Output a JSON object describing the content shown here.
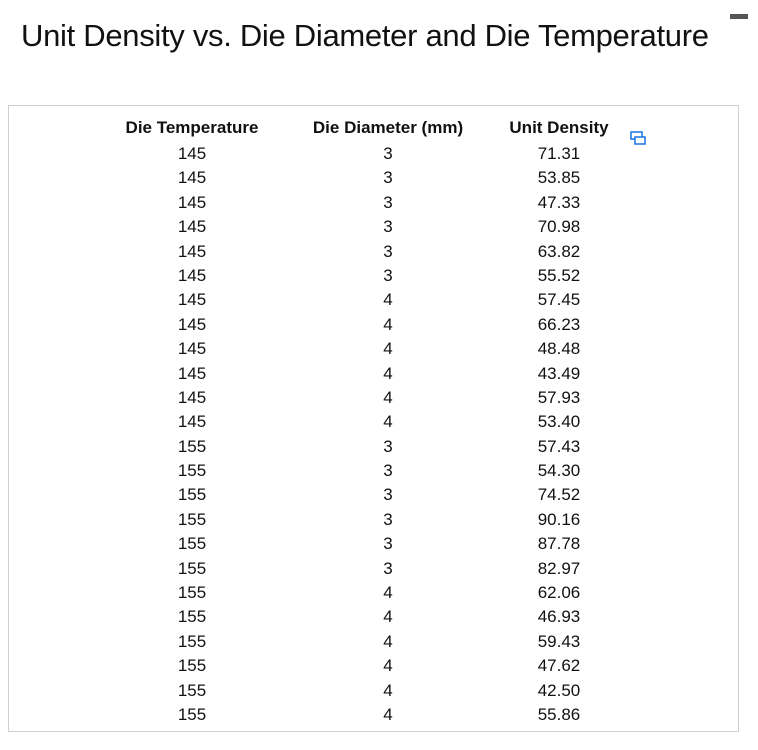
{
  "title": "Unit Density vs. Die Diameter and Die Temperature",
  "table": {
    "columns": [
      "Die Temperature",
      "Die Diameter (mm)",
      "Unit Density"
    ],
    "rows": [
      [
        "145",
        "3",
        "71.31"
      ],
      [
        "145",
        "3",
        "53.85"
      ],
      [
        "145",
        "3",
        "47.33"
      ],
      [
        "145",
        "3",
        "70.98"
      ],
      [
        "145",
        "3",
        "63.82"
      ],
      [
        "145",
        "3",
        "55.52"
      ],
      [
        "145",
        "4",
        "57.45"
      ],
      [
        "145",
        "4",
        "66.23"
      ],
      [
        "145",
        "4",
        "48.48"
      ],
      [
        "145",
        "4",
        "43.49"
      ],
      [
        "145",
        "4",
        "57.93"
      ],
      [
        "145",
        "4",
        "53.40"
      ],
      [
        "155",
        "3",
        "57.43"
      ],
      [
        "155",
        "3",
        "54.30"
      ],
      [
        "155",
        "3",
        "74.52"
      ],
      [
        "155",
        "3",
        "90.16"
      ],
      [
        "155",
        "3",
        "87.78"
      ],
      [
        "155",
        "3",
        "82.97"
      ],
      [
        "155",
        "4",
        "62.06"
      ],
      [
        "155",
        "4",
        "46.93"
      ],
      [
        "155",
        "4",
        "59.43"
      ],
      [
        "155",
        "4",
        "47.62"
      ],
      [
        "155",
        "4",
        "42.50"
      ],
      [
        "155",
        "4",
        "55.86"
      ]
    ]
  },
  "icons": {
    "copy": "copy-icon"
  },
  "colors": {
    "text": "#111111",
    "border": "#cfcfcf",
    "icon": "#1a73e8"
  }
}
